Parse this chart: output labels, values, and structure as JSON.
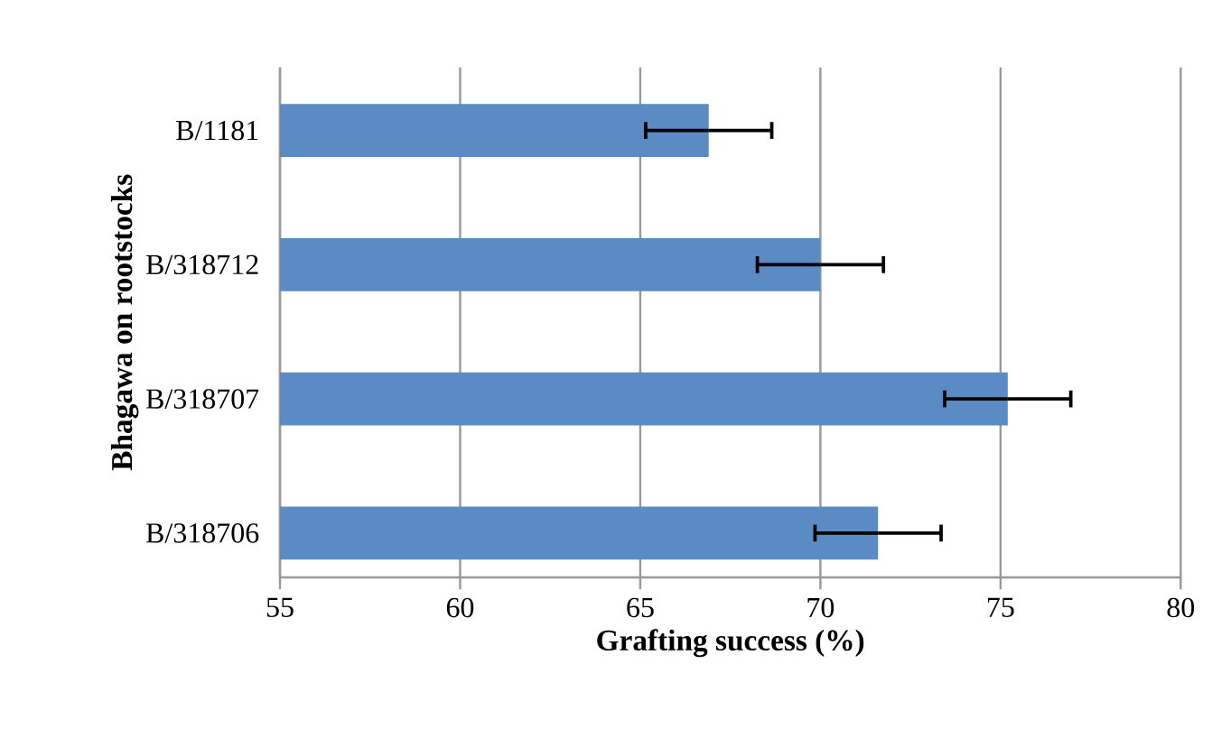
{
  "chart_data": {
    "type": "bar",
    "orientation": "horizontal",
    "xlabel": "Grafting success (%)",
    "ylabel": "Bhagawa on rootstocks",
    "categories": [
      "B/1181",
      "B/318712",
      "B/318707",
      "B/318706"
    ],
    "values": [
      66.9,
      70.0,
      75.2,
      71.6
    ],
    "errors": [
      1.75,
      1.75,
      1.75,
      1.75
    ],
    "color": "#5b8bc4",
    "xlim": [
      55,
      80
    ],
    "xticks": [
      55,
      60,
      65,
      70,
      75,
      80
    ],
    "grid": "x"
  }
}
